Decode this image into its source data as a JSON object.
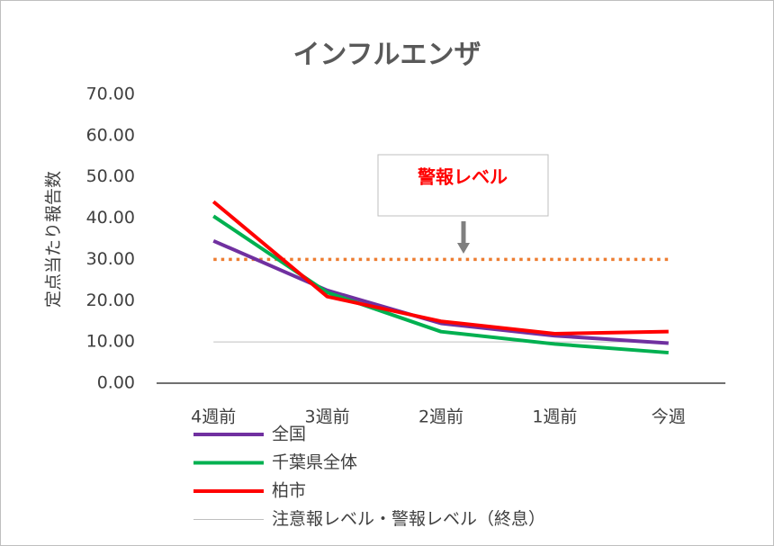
{
  "chart_data": {
    "type": "line",
    "title": "インフルエンザ",
    "y_label": "定点当たり報告数",
    "categories": [
      "4週前",
      "3週前",
      "2週前",
      "1週前",
      "今週"
    ],
    "series": [
      {
        "name": "全国",
        "color": "#7030a0",
        "values": [
          34.5,
          22.5,
          14.5,
          11.5,
          9.7
        ]
      },
      {
        "name": "千葉県全体",
        "color": "#00b050",
        "values": [
          40.5,
          22.0,
          12.5,
          9.5,
          7.4
        ]
      },
      {
        "name": "柏市",
        "color": "#ff0000",
        "values": [
          44.0,
          21.0,
          15.0,
          12.0,
          12.5
        ]
      },
      {
        "name": "注意報レベル・警報レベル（終息）",
        "color": "#bfbfbf",
        "values": [
          10,
          10,
          10,
          10,
          10
        ]
      }
    ],
    "reference_line": {
      "value": 30,
      "label": "警報レベル",
      "color": "#ed7d31"
    },
    "ylim": [
      0,
      70
    ],
    "yticks": [
      {
        "value": 0,
        "label": "0.00"
      },
      {
        "value": 10,
        "label": "10.00"
      },
      {
        "value": 20,
        "label": "20.00"
      },
      {
        "value": 30,
        "label": "30.00"
      },
      {
        "value": 40,
        "label": "40.00"
      },
      {
        "value": 50,
        "label": "50.00"
      },
      {
        "value": 60,
        "label": "60.00"
      },
      {
        "value": 70,
        "label": "70.00"
      }
    ],
    "grid": false
  }
}
